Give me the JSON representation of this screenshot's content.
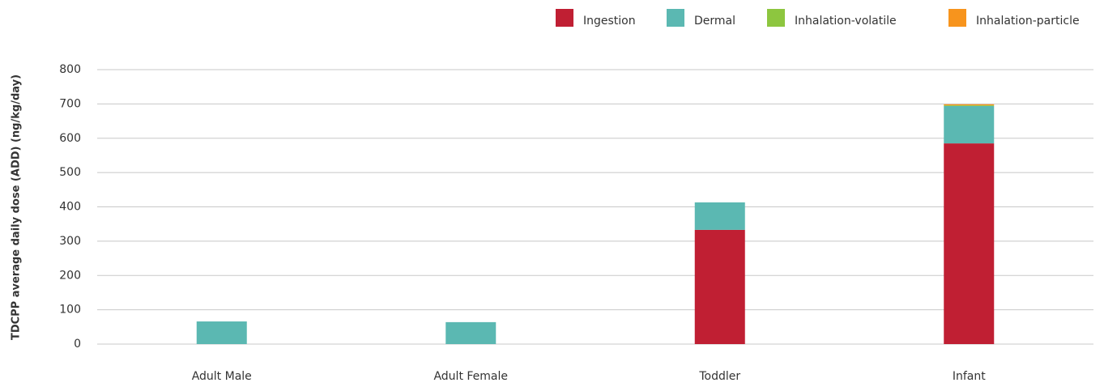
{
  "chart_data": {
    "type": "bar",
    "stacked": true,
    "y_label": "TDCPP average daily dose (ADD) (ng/kg/day)",
    "categories": [
      "Adult Male",
      "Adult Female",
      "Toddler",
      "Infant"
    ],
    "series": [
      {
        "name": "Ingestion",
        "color": "#c01f33",
        "values": [
          0,
          0,
          333,
          585
        ]
      },
      {
        "name": "Dermal",
        "color": "#5bb8b2",
        "values": [
          66,
          64,
          80,
          109
        ]
      },
      {
        "name": "Inhalation-volatile",
        "color": "#8dc63f",
        "values": [
          0,
          0,
          0,
          2
        ]
      },
      {
        "name": "Inhalation-particle",
        "color": "#f7941d",
        "values": [
          0,
          0,
          0,
          3
        ]
      }
    ],
    "ylim": [
      0,
      800
    ],
    "yticks": [
      0,
      100,
      200,
      300,
      400,
      500,
      600,
      700,
      800
    ],
    "grid": true,
    "legend": "top-right"
  }
}
